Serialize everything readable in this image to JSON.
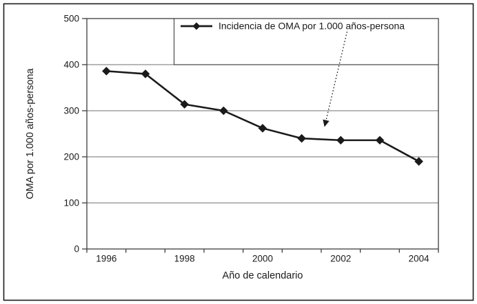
{
  "chart_data": {
    "type": "line",
    "title": "",
    "xlabel": "Año de calendario",
    "ylabel": "OMA por 1.000 años-persona",
    "legend_label": "Incidencia de OMA por 1.000 años-persona",
    "legend_position": "top-right-inside-box",
    "x": [
      1996,
      1997,
      1998,
      1999,
      2000,
      2001,
      2002,
      2003,
      2004
    ],
    "series": [
      {
        "name": "Incidencia de OMA por 1.000 años-persona",
        "values": [
          386,
          380,
          314,
          300,
          262,
          240,
          236,
          236,
          190
        ]
      }
    ],
    "ylim": [
      0,
      500
    ],
    "yticks": [
      0,
      100,
      200,
      300,
      400,
      500
    ],
    "xtick_labels": [
      "1996",
      "1998",
      "2000",
      "2002",
      "2004"
    ],
    "grid": "horizontal",
    "marker": "diamond",
    "annotation": {
      "type": "dotted-arrow",
      "from": "legend box, below text",
      "points_to": "series line near year 2001"
    },
    "colors": {
      "line": "#1a1a1a",
      "marker": "#1a1a1a",
      "gridline": "#8c8c8c",
      "axis": "#3c3c3c",
      "text": "#1a1a1a",
      "background": "#ffffff",
      "figure_border": "#1a1a1a"
    }
  }
}
